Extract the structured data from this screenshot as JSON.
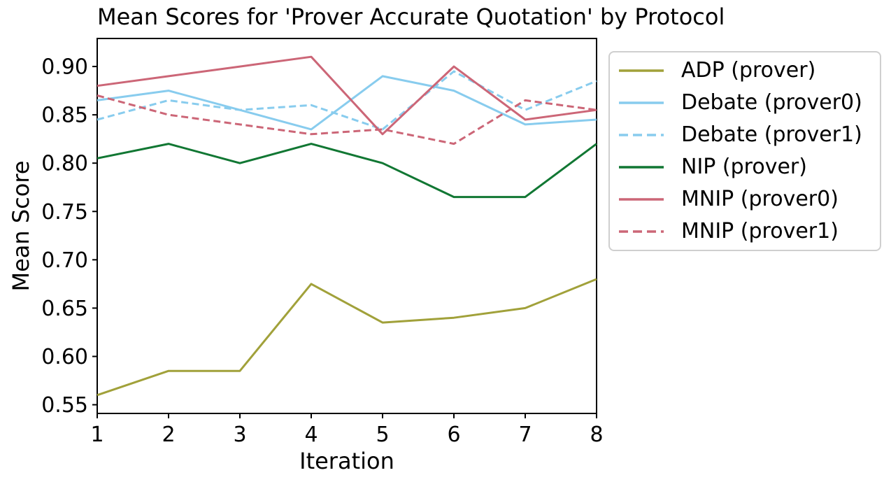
{
  "figure": {
    "background": "#ffffff"
  },
  "chart_data": {
    "type": "line",
    "title": "Mean Scores for 'Prover Accurate Quotation' by Protocol",
    "xlabel": "Iteration",
    "ylabel": "Mean Score",
    "x": [
      1,
      2,
      3,
      4,
      5,
      6,
      7,
      8
    ],
    "xlim": [
      1,
      8
    ],
    "ylim": [
      0.541,
      0.929
    ],
    "xticks": [
      1,
      2,
      3,
      4,
      5,
      6,
      7,
      8
    ],
    "xtick_labels": [
      "1",
      "2",
      "3",
      "4",
      "5",
      "6",
      "7",
      "8"
    ],
    "yticks": [
      0.55,
      0.6,
      0.65,
      0.7,
      0.75,
      0.8,
      0.85,
      0.9
    ],
    "ytick_labels": [
      "0.55",
      "0.60",
      "0.65",
      "0.70",
      "0.75",
      "0.80",
      "0.85",
      "0.90"
    ],
    "grid": false,
    "axis_color": "#000000",
    "text_color": "#000000",
    "legend": {
      "position": "outside-upper-right",
      "border_color": "#cfcfcf",
      "background": "#ffffff"
    },
    "series": [
      {
        "name": "ADP (prover)",
        "color": "#a1a13a",
        "style": "solid",
        "values": [
          0.56,
          0.585,
          0.585,
          0.675,
          0.635,
          0.64,
          0.65,
          0.68
        ]
      },
      {
        "name": "Debate (prover0)",
        "color": "#88CCEE",
        "style": "solid",
        "values": [
          0.865,
          0.875,
          0.855,
          0.835,
          0.89,
          0.875,
          0.84,
          0.845
        ]
      },
      {
        "name": "Debate (prover1)",
        "color": "#88CCEE",
        "style": "dashed",
        "values": [
          0.845,
          0.865,
          0.855,
          0.86,
          0.835,
          0.895,
          0.855,
          0.885
        ]
      },
      {
        "name": "NIP (prover)",
        "color": "#117733",
        "style": "solid",
        "values": [
          0.805,
          0.82,
          0.8,
          0.82,
          0.8,
          0.765,
          0.765,
          0.82
        ]
      },
      {
        "name": "MNIP (prover0)",
        "color": "#CC6677",
        "style": "solid",
        "values": [
          0.88,
          0.89,
          0.9,
          0.91,
          0.83,
          0.9,
          0.845,
          0.855
        ]
      },
      {
        "name": "MNIP (prover1)",
        "color": "#CC6677",
        "style": "dashed",
        "values": [
          0.87,
          0.85,
          0.84,
          0.83,
          0.835,
          0.82,
          0.865,
          0.855
        ]
      }
    ]
  }
}
